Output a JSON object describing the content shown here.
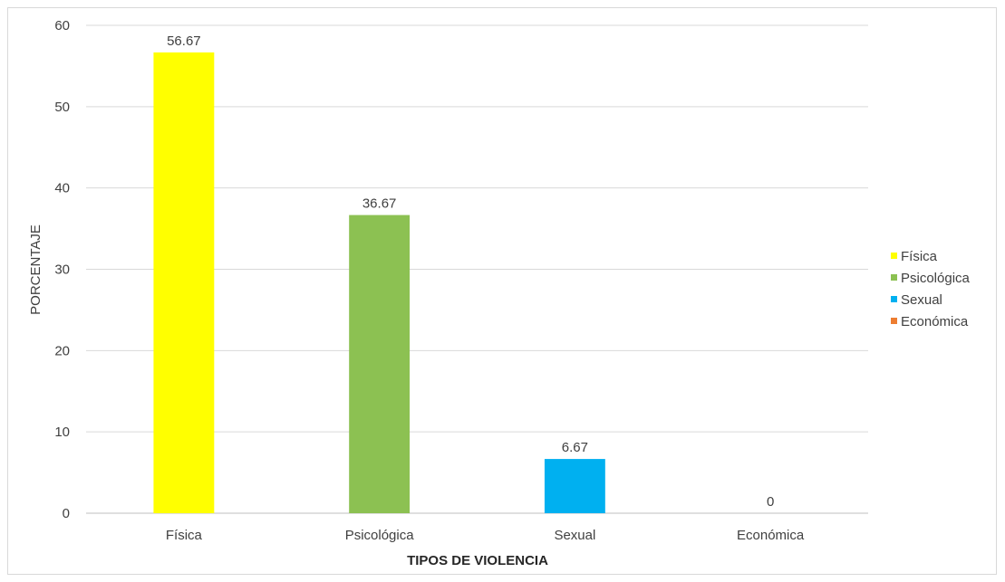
{
  "chart_data": {
    "type": "bar",
    "categories": [
      "Física",
      "Psicológica",
      "Sexual",
      "Económica"
    ],
    "values": [
      56.67,
      36.67,
      6.67,
      0
    ],
    "data_labels": [
      "56.67",
      "36.67",
      "6.67",
      "0"
    ],
    "colors": [
      "#ffff00",
      "#8cc152",
      "#00b0f0",
      "#ed7d31"
    ],
    "xlabel": "TIPOS DE VIOLENCIA",
    "ylabel": "PORCENTAJE",
    "ylim": [
      0,
      60
    ],
    "yticks": [
      0,
      10,
      20,
      30,
      40,
      50,
      60
    ],
    "grid": true,
    "legend": {
      "placement": "right",
      "entries": [
        "Física",
        "Psicológica",
        "Sexual",
        "Económica"
      ]
    }
  }
}
